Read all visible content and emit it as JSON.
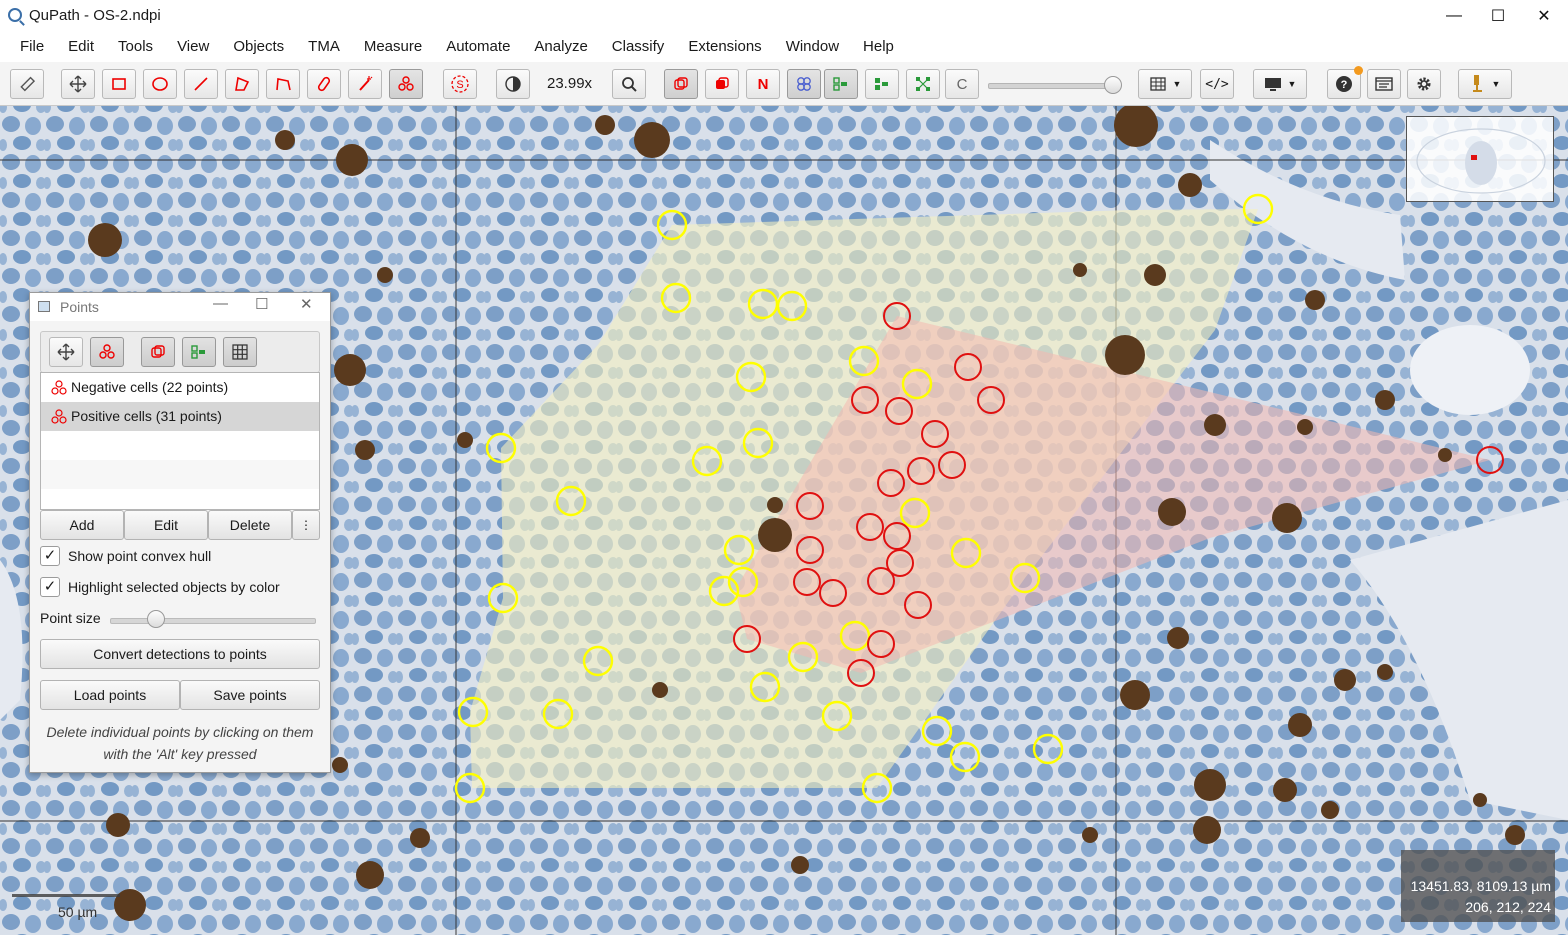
{
  "window": {
    "title": "QuPath - OS-2.ndpi",
    "minimize": "—",
    "maximize": "☐",
    "close": "✕"
  },
  "menu": [
    "File",
    "Edit",
    "Tools",
    "View",
    "Objects",
    "TMA",
    "Measure",
    "Automate",
    "Analyze",
    "Classify",
    "Extensions",
    "Window",
    "Help"
  ],
  "toolbar": {
    "zoom": "23.99x",
    "classify_letter": "C",
    "negative_letter": "N"
  },
  "viewer": {
    "coordinates": "13451.83, 8109.13 µm",
    "pixel_values": "206, 212, 224",
    "scale_label": "50 µm",
    "positive_color": "#ffff00",
    "negative_color": "#ff0000"
  },
  "points_panel": {
    "title": "Points",
    "classes": [
      {
        "label": "Negative cells (22 points)",
        "selected": false
      },
      {
        "label": "Positive cells (31 points)",
        "selected": true
      }
    ],
    "buttons": {
      "add": "Add",
      "edit": "Edit",
      "delete": "Delete",
      "more": "⋮"
    },
    "show_convex_hull": "Show point convex hull",
    "highlight_selected": "Highlight selected objects by color",
    "point_size_label": "Point size",
    "convert_button": "Convert detections to points",
    "load_button": "Load points",
    "save_button": "Save points",
    "hint": "Delete individual points by clicking on them with the 'Alt' key pressed"
  }
}
